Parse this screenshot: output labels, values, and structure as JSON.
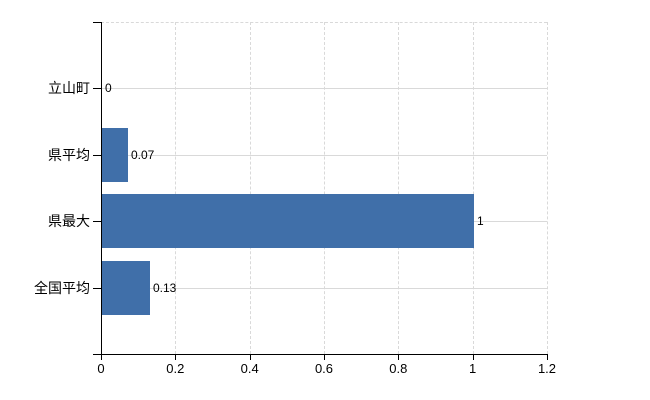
{
  "chart_data": {
    "type": "bar",
    "orientation": "horizontal",
    "title": "",
    "categories": [
      "立山町",
      "県平均",
      "県最大",
      "全国平均"
    ],
    "values": [
      0,
      0.07,
      1,
      0.13
    ],
    "value_labels": [
      "0",
      "0.07",
      "1",
      "0.13"
    ],
    "x_ticks": [
      "0",
      "0.2",
      "0.4",
      "0.6",
      "0.8",
      "1",
      "1.2"
    ],
    "x_tick_values": [
      0,
      0.2,
      0.4,
      0.6,
      0.8,
      1,
      1.2
    ],
    "xlim": [
      0,
      1.2
    ],
    "grid": true,
    "legend": false,
    "bar_color": "#406fa9",
    "gridline_color": "#d9d9d9",
    "axis_color": "#000000",
    "text_color": "#000000",
    "background": "#ffffff"
  }
}
